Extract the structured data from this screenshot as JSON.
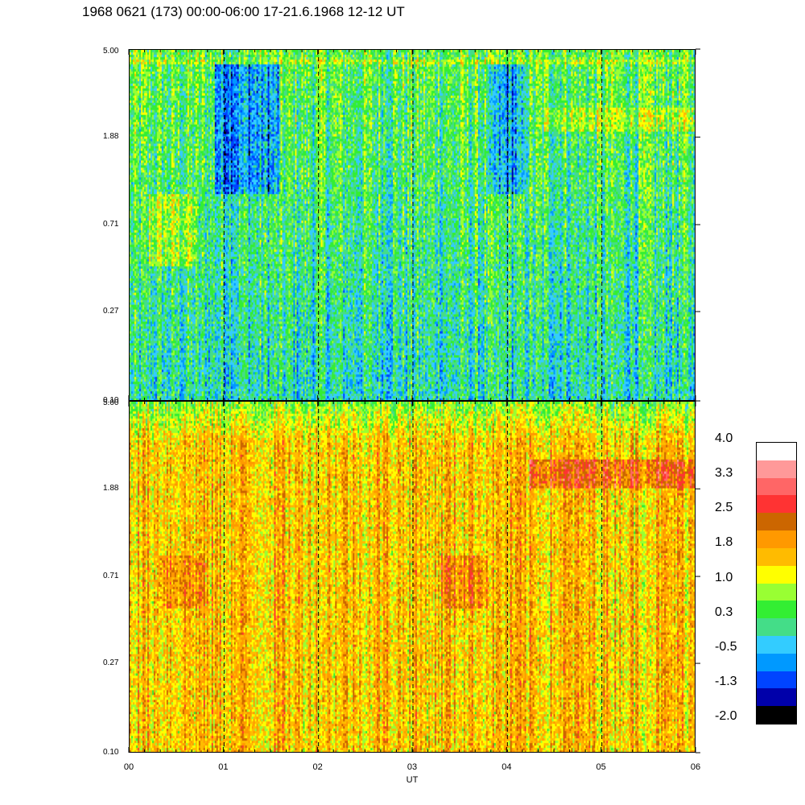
{
  "title": "1968 0621 (173) 00:00-06:00 17-21.6.1968  12-12 UT",
  "chart_data": {
    "type": "heatmap",
    "title": "1968 0621 (173) 00:00-06:00 17-21.6.1968  12-12 UT",
    "xlabel": "UT",
    "x_ticks": [
      "00",
      "01",
      "02",
      "03",
      "04",
      "05",
      "06"
    ],
    "xlim": [
      0,
      6
    ],
    "panels": [
      {
        "position": "top",
        "y_ticks": [
          "0.10",
          "0.27",
          "0.71",
          "1.88",
          "5.00"
        ],
        "ylim": [
          0.1,
          5.0
        ],
        "y_scale": "log",
        "dominant_level": 0.3,
        "features": [
          {
            "x_range": [
              0.9,
              1.6
            ],
            "y_range": [
              1.0,
              4.5
            ],
            "level": -0.9
          },
          {
            "x_range": [
              3.8,
              4.2
            ],
            "y_range": [
              1.0,
              4.5
            ],
            "level": -0.9
          },
          {
            "x_range": [
              4.4,
              6.0
            ],
            "y_range": [
              2.0,
              2.6
            ],
            "level": 1.0
          },
          {
            "x_range": [
              0.2,
              0.7
            ],
            "y_range": [
              0.45,
              1.0
            ],
            "level": 1.0
          },
          {
            "x_range": [
              0.0,
              6.0
            ],
            "y_range": [
              4.2,
              4.5
            ],
            "level": 1.0
          }
        ]
      },
      {
        "position": "bottom",
        "y_ticks": [
          "0.10",
          "0.27",
          "0.71",
          "1.88",
          "5.00"
        ],
        "ylim": [
          0.1,
          5.0
        ],
        "y_scale": "log",
        "dominant_level": 1.6,
        "features": [
          {
            "x_range": [
              4.25,
              6.0
            ],
            "y_range": [
              1.9,
              2.6
            ],
            "level": 2.6
          },
          {
            "x_range": [
              3.3,
              3.8
            ],
            "y_range": [
              0.5,
              0.9
            ],
            "level": 2.3
          },
          {
            "x_range": [
              0.3,
              0.8
            ],
            "y_range": [
              0.5,
              0.9
            ],
            "level": 2.2
          }
        ]
      }
    ],
    "colorbar": {
      "tick_labels": [
        "4.0",
        "3.3",
        "2.5",
        "1.8",
        "1.0",
        "0.3",
        "-0.5",
        "-1.3",
        "-2.0"
      ],
      "range": [
        -2.0,
        4.0
      ],
      "colors": [
        "#000000",
        "#0000aa",
        "#0044ff",
        "#0099ff",
        "#33ccff",
        "#44dd88",
        "#33ee33",
        "#99ff33",
        "#ffff00",
        "#ffbb00",
        "#ff9900",
        "#cc6600",
        "#ff3333",
        "#ff6666",
        "#ff9999",
        "#ffffff"
      ]
    }
  }
}
